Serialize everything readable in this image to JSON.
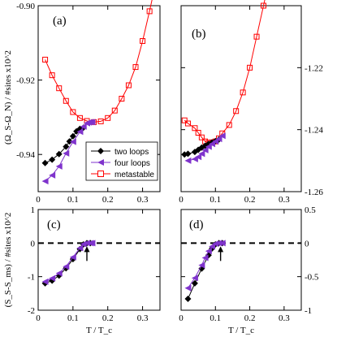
{
  "chart_data": [
    {
      "panel": "a",
      "type": "line",
      "panel_label": "(a)",
      "ylabel": "(Ω_S-Ω_N) / #sites x10^2",
      "y_axis_side": "left",
      "xlim": [
        0,
        0.35
      ],
      "ylim": [
        -0.95,
        -0.9
      ],
      "xticks": [
        0,
        0.1,
        0.2,
        0.3
      ],
      "xtick_labels": [
        "0",
        "0.1",
        "0.2",
        "0.3"
      ],
      "yticks": [
        -0.94,
        -0.92,
        -0.9
      ],
      "ytick_labels": [
        "-0.94",
        "-0.92",
        "-0.90"
      ],
      "legend_position": "bottom-right",
      "series": [
        {
          "name": "metastable",
          "color": "#ff0000",
          "marker": "square-open",
          "x": [
            0.02,
            0.04,
            0.06,
            0.08,
            0.1,
            0.12,
            0.14,
            0.16,
            0.18,
            0.2,
            0.22,
            0.24,
            0.26,
            0.28,
            0.3,
            0.32,
            0.34
          ],
          "y": [
            -0.9145,
            -0.9187,
            -0.9222,
            -0.9256,
            -0.9286,
            -0.9302,
            -0.931,
            -0.9313,
            -0.9311,
            -0.9302,
            -0.9282,
            -0.925,
            -0.9214,
            -0.9165,
            -0.9095,
            -0.9015,
            -0.893
          ]
        },
        {
          "name": "two loops",
          "color": "#000000",
          "marker": "diamond-filled",
          "x": [
            0.02,
            0.04,
            0.06,
            0.08,
            0.09,
            0.1,
            0.11,
            0.12,
            0.13
          ],
          "y": [
            -0.9423,
            -0.9414,
            -0.9399,
            -0.9379,
            -0.9365,
            -0.9351,
            -0.9338,
            -0.9331,
            -0.9328
          ]
        },
        {
          "name": "four loops",
          "color": "#7f33cc",
          "marker": "triangle-left-filled",
          "x": [
            0.02,
            0.04,
            0.06,
            0.08,
            0.1,
            0.12,
            0.13,
            0.14,
            0.145,
            0.15,
            0.155
          ],
          "y": [
            -0.9472,
            -0.9456,
            -0.9432,
            -0.9397,
            -0.9366,
            -0.9339,
            -0.9325,
            -0.9316,
            -0.9314,
            -0.9313,
            -0.9313
          ]
        }
      ]
    },
    {
      "panel": "b",
      "type": "line",
      "panel_label": "(b)",
      "y_axis_side": "right",
      "xlim": [
        0,
        0.35
      ],
      "ylim": [
        -1.26,
        -1.2
      ],
      "xticks": [
        0,
        0.1,
        0.2,
        0.3
      ],
      "xtick_labels": [
        "0",
        "0.1",
        "0.2",
        "0.3"
      ],
      "yticks": [
        -1.26,
        -1.24,
        -1.22
      ],
      "ytick_labels": [
        "-1.26",
        "-1.24",
        "-1.22"
      ],
      "series": [
        {
          "name": "metastable",
          "color": "#ff0000",
          "marker": "square-open",
          "x": [
            0.01,
            0.02,
            0.04,
            0.05,
            0.06,
            0.07,
            0.08,
            0.09,
            0.1,
            0.11,
            0.12,
            0.14,
            0.16,
            0.18,
            0.2,
            0.22,
            0.24,
            0.26
          ],
          "y": [
            -1.237,
            -1.238,
            -1.2395,
            -1.241,
            -1.2425,
            -1.2438,
            -1.2442,
            -1.2441,
            -1.2438,
            -1.2428,
            -1.2412,
            -1.2385,
            -1.234,
            -1.228,
            -1.22,
            -1.21,
            -1.2,
            -1.19
          ]
        },
        {
          "name": "two loops",
          "color": "#000000",
          "marker": "diamond-filled",
          "x": [
            0.01,
            0.02,
            0.04,
            0.05,
            0.06,
            0.07,
            0.08,
            0.09,
            0.1,
            0.11
          ],
          "y": [
            -1.248,
            -1.2478,
            -1.2472,
            -1.2465,
            -1.2458,
            -1.2452,
            -1.2446,
            -1.2441,
            -1.2437,
            -1.2432
          ]
        },
        {
          "name": "four loops",
          "color": "#7f33cc",
          "marker": "triangle-left-filled",
          "x": [
            0.02,
            0.04,
            0.05,
            0.06,
            0.07,
            0.08,
            0.09,
            0.1,
            0.11,
            0.12
          ],
          "y": [
            -1.25,
            -1.2495,
            -1.2488,
            -1.2478,
            -1.2466,
            -1.2455,
            -1.2446,
            -1.2438,
            -1.243,
            -1.242
          ]
        }
      ]
    },
    {
      "panel": "c",
      "type": "line",
      "panel_label": "(c)",
      "ylabel": "(S_S-S_ms) / #sites x10^2",
      "xlabel": "T / T_c",
      "y_axis_side": "left",
      "xlim": [
        0,
        0.35
      ],
      "ylim": [
        -2,
        1
      ],
      "xticks": [
        0,
        0.1,
        0.2,
        0.3
      ],
      "xtick_labels": [
        "0",
        "0.1",
        "0.2",
        "0.3"
      ],
      "yticks": [
        -2,
        -1,
        0,
        1
      ],
      "ytick_labels": [
        "-2",
        "-1",
        "0",
        "1"
      ],
      "reference_line": {
        "y": 0,
        "style": "dashed"
      },
      "arrow_at_x": 0.14,
      "series": [
        {
          "name": "two loops",
          "color": "#000000",
          "marker": "diamond-filled",
          "x": [
            0.02,
            0.04,
            0.06,
            0.08,
            0.1,
            0.12,
            0.13,
            0.14,
            0.15
          ],
          "y": [
            -1.2,
            -1.12,
            -0.97,
            -0.75,
            -0.48,
            -0.18,
            -0.04,
            0.0,
            0.0
          ]
        },
        {
          "name": "four loops",
          "color": "#7f33cc",
          "marker": "triangle-left-filled",
          "x": [
            0.02,
            0.04,
            0.06,
            0.08,
            0.1,
            0.12,
            0.13,
            0.14,
            0.15,
            0.155
          ],
          "y": [
            -1.15,
            -1.05,
            -0.9,
            -0.7,
            -0.42,
            -0.15,
            -0.03,
            0.0,
            0.0,
            0.0
          ]
        }
      ]
    },
    {
      "panel": "d",
      "type": "line",
      "panel_label": "(d)",
      "xlabel": "T / T_c",
      "y_axis_side": "right",
      "xlim": [
        0,
        0.35
      ],
      "ylim": [
        -1,
        0.5
      ],
      "xticks": [
        0,
        0.1,
        0.2,
        0.3
      ],
      "xtick_labels": [
        "0",
        "0.1",
        "0.2",
        "0.3"
      ],
      "yticks": [
        -1,
        -0.5,
        0,
        0.5
      ],
      "ytick_labels": [
        "-1",
        "-0.5",
        "0",
        "0.5"
      ],
      "reference_line": {
        "y": 0,
        "style": "dashed"
      },
      "arrow_at_x": 0.115,
      "series": [
        {
          "name": "two loops",
          "color": "#000000",
          "marker": "diamond-filled",
          "x": [
            0.02,
            0.04,
            0.06,
            0.08,
            0.09,
            0.1,
            0.11,
            0.12
          ],
          "y": [
            -0.83,
            -0.6,
            -0.38,
            -0.18,
            -0.08,
            -0.02,
            0.0,
            0.0
          ]
        },
        {
          "name": "four loops",
          "color": "#7f33cc",
          "marker": "triangle-left-filled",
          "x": [
            0.02,
            0.04,
            0.06,
            0.07,
            0.08,
            0.09,
            0.1,
            0.11,
            0.12
          ],
          "y": [
            -0.67,
            -0.52,
            -0.33,
            -0.22,
            -0.12,
            -0.05,
            -0.01,
            0.0,
            0.0
          ]
        }
      ]
    }
  ]
}
